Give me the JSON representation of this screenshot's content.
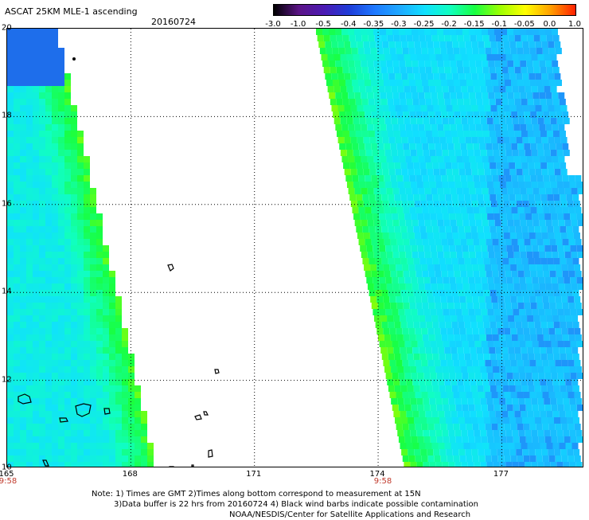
{
  "header": {
    "title": "ASCAT 25KM MLE-1 ascending",
    "date": "20160724"
  },
  "colorbar": {
    "labels": [
      "-3.0",
      "-1.0",
      "-0.5",
      "-0.4",
      "-0.35",
      "-0.3",
      "-0.25",
      "-0.2",
      "-0.15",
      "-0.1",
      "-0.05",
      "0.0",
      "1.0"
    ],
    "colors": [
      "#000000",
      "#5b1486",
      "#4b1ab3",
      "#1e3cd8",
      "#1e78ff",
      "#1ea8ff",
      "#10e0ff",
      "#10ffc0",
      "#18ff40",
      "#9cff00",
      "#ffff00",
      "#ffa000",
      "#ff2000"
    ]
  },
  "map": {
    "lon_range": [
      165,
      179
    ],
    "lat_range": [
      10,
      20
    ],
    "lat_ticks": [
      "20",
      "18",
      "16",
      "14",
      "12",
      "10"
    ],
    "lon_ticks": [
      "165",
      "168",
      "171",
      "174",
      "177"
    ],
    "swath_times": [
      "9:58",
      "9:58"
    ]
  },
  "notes": {
    "line1": "Note: 1) Times are GMT 2)Times along bottom correspond to measurement at 15N",
    "line2": "3)Data buffer is 22 hrs from 20160724 4) Black wind barbs indicate possible contamination",
    "line3": "NOAA/NESDIS/Center for Satellite Applications and Research"
  }
}
